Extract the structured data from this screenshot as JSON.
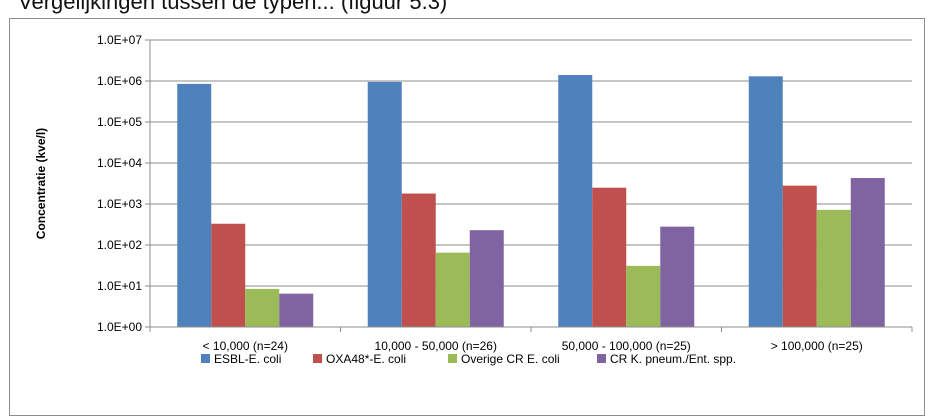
{
  "top_text": "Vergelijkingen tussen de typen... (figuur 5.3)",
  "chart_data": {
    "type": "bar",
    "y_scale": "log",
    "ylim": [
      1,
      10000000
    ],
    "yticks": [
      "1.0E+00",
      "1.0E+01",
      "1.0E+02",
      "1.0E+03",
      "1.0E+04",
      "1.0E+05",
      "1.0E+06",
      "1.0E+07"
    ],
    "ylabel": "Concentratie (kve/l)",
    "xlabel": "",
    "title": "",
    "grid": "horizontal",
    "legend_position": "bottom",
    "categories": [
      "< 10,000 (n=24)",
      "10,000 - 50,000 (n=26)",
      "50,000 - 100,000 (n=25)",
      "> 100,000 (n=25)"
    ],
    "series": [
      {
        "name": "ESBL-E. coli",
        "color": "#4F81BD",
        "values": [
          850000,
          950000,
          1400000,
          1300000
        ]
      },
      {
        "name": "OXA48*-E. coli",
        "color": "#C0504D",
        "values": [
          330,
          1800,
          2500,
          2800
        ]
      },
      {
        "name": "Overige CR E. coli",
        "color": "#9BBB59",
        "values": [
          8.5,
          65,
          31,
          720
        ]
      },
      {
        "name": "CR K. pneum./Ent. spp.",
        "color": "#8064A2",
        "values": [
          6.5,
          230,
          280,
          4300
        ]
      }
    ]
  }
}
